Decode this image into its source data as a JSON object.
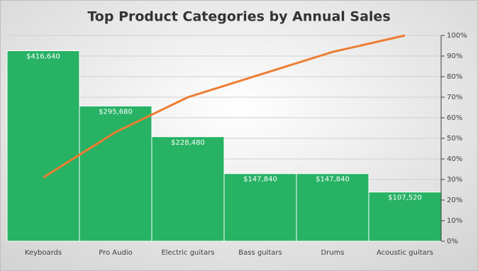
{
  "chart_data": {
    "type": "pareto",
    "title": "Top Product Categories by Annual Sales",
    "categories": [
      "Keyboards",
      "Pro Audio",
      "Electric guitars",
      "Bass guitars",
      "Drums",
      "Acoustic guitars"
    ],
    "values": [
      416640,
      295680,
      228480,
      147840,
      147840,
      107520
    ],
    "value_labels": [
      "$416,640",
      "$295,680",
      "$228,480",
      "$147,840",
      "$147,840",
      "$107,520"
    ],
    "color": "#27b264",
    "ylim": [
      0,
      450000
    ],
    "line": {
      "values": [
        31,
        53,
        70,
        81,
        92,
        100
      ],
      "color": "#ed7d31",
      "axis": "y2"
    },
    "y2lim": [
      0,
      100
    ],
    "y2ticks": [
      {
        "value": 0,
        "label": "0%"
      },
      {
        "value": 10,
        "label": "10%"
      },
      {
        "value": 20,
        "label": "20%"
      },
      {
        "value": 30,
        "label": "30%"
      },
      {
        "value": 40,
        "label": "40%"
      },
      {
        "value": 50,
        "label": "50%"
      },
      {
        "value": 60,
        "label": "60%"
      },
      {
        "value": 70,
        "label": "70%"
      },
      {
        "value": 80,
        "label": "80%"
      },
      {
        "value": 90,
        "label": "90%"
      },
      {
        "value": 100,
        "label": "100%"
      }
    ],
    "grid": true
  }
}
